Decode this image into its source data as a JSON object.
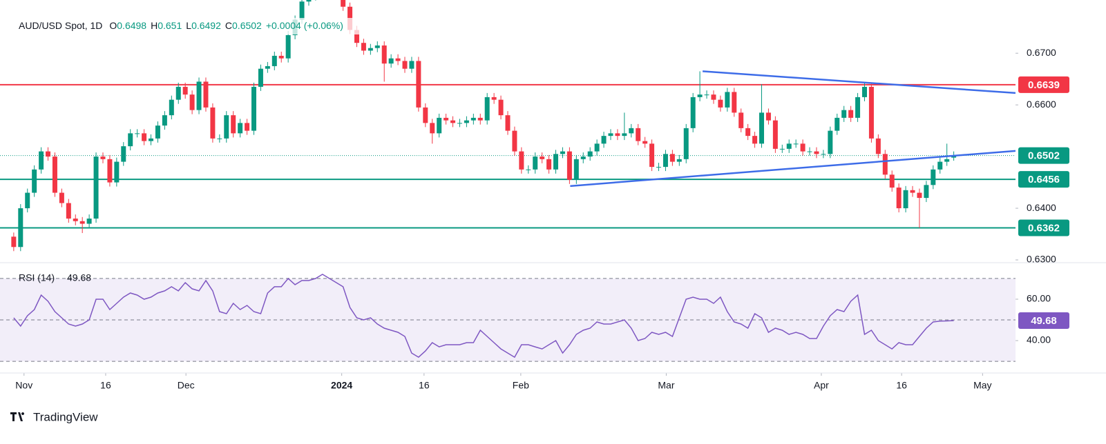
{
  "chart_data": {
    "type": "candlestick",
    "symbol": "AUD/USD Spot, 1D",
    "legend": [
      {
        "label": "O",
        "value": 0.6498
      },
      {
        "label": "H",
        "value": 0.651
      },
      {
        "label": "L",
        "value": 0.6492
      },
      {
        "label": "C",
        "value": 0.6502
      }
    ],
    "change": "+0.0004 (+0.06%)",
    "up_color": "#089981",
    "down_color": "#f23645",
    "xlim": [
      -2,
      146
    ],
    "xticks": [
      {
        "value": 1.5,
        "label": "Nov"
      },
      {
        "value": 13.4,
        "label": "16"
      },
      {
        "value": 25.1,
        "label": "Dec"
      },
      {
        "value": 47.8,
        "label": "2024",
        "bold": true
      },
      {
        "value": 59.8,
        "label": "16"
      },
      {
        "value": 73.9,
        "label": "Feb"
      },
      {
        "value": 95.1,
        "label": "Mar"
      },
      {
        "value": 117.7,
        "label": "Apr"
      },
      {
        "value": 129.4,
        "label": "16"
      },
      {
        "value": 141.2,
        "label": "May"
      }
    ],
    "ylim": [
      0.6296,
      0.6803
    ],
    "yticks": [
      {
        "value": 0.63,
        "label": "0.6300"
      },
      {
        "value": 0.64,
        "label": "0.6400"
      },
      {
        "value": 0.66,
        "label": "0.6600"
      },
      {
        "value": 0.67,
        "label": "0.6700"
      }
    ],
    "open": [
      0.6345,
      0.6325,
      0.64,
      0.643,
      0.6475,
      0.651,
      0.65,
      0.643,
      0.641,
      0.638,
      0.6375,
      0.637,
      0.638,
      0.65,
      0.6495,
      0.645,
      0.649,
      0.652,
      0.6545,
      0.6545,
      0.653,
      0.6535,
      0.656,
      0.658,
      0.661,
      0.6635,
      0.662,
      0.659,
      0.6645,
      0.6595,
      0.6535,
      0.6535,
      0.658,
      0.6545,
      0.6565,
      0.655,
      0.6635,
      0.667,
      0.6675,
      0.6695,
      0.669,
      0.6735,
      0.6765,
      0.68,
      0.681,
      0.682,
      0.683,
      0.6825,
      0.682,
      0.679,
      0.6745,
      0.672,
      0.6705,
      0.671,
      0.6715,
      0.668,
      0.669,
      0.6685,
      0.667,
      0.6685,
      0.6595,
      0.6565,
      0.6545,
      0.6575,
      0.657,
      0.6565,
      0.6565,
      0.657,
      0.6575,
      0.657,
      0.6615,
      0.661,
      0.658,
      0.655,
      0.651,
      0.6475,
      0.6475,
      0.65,
      0.6495,
      0.6475,
      0.6505,
      0.651,
      0.6455,
      0.6495,
      0.65,
      0.651,
      0.6525,
      0.654,
      0.6545,
      0.654,
      0.6545,
      0.6555,
      0.653,
      0.6525,
      0.648,
      0.648,
      0.6505,
      0.649,
      0.6495,
      0.6555,
      0.6615,
      0.662,
      0.662,
      0.661,
      0.6595,
      0.6625,
      0.6585,
      0.6555,
      0.654,
      0.6525,
      0.6585,
      0.657,
      0.6515,
      0.6515,
      0.6525,
      0.6525,
      0.651,
      0.651,
      0.6505,
      0.6505,
      0.655,
      0.6575,
      0.659,
      0.6575,
      0.6615,
      0.6635,
      0.6535,
      0.6505,
      0.6465,
      0.644,
      0.64,
      0.6435,
      0.643,
      0.642,
      0.6445,
      0.6475,
      0.649,
      0.6498
    ],
    "high": [
      0.6353,
      0.6408,
      0.6438,
      0.6483,
      0.6518,
      0.6518,
      0.6508,
      0.6438,
      0.6418,
      0.6388,
      0.6383,
      0.6388,
      0.6508,
      0.6508,
      0.6503,
      0.6498,
      0.6528,
      0.6553,
      0.6553,
      0.6553,
      0.6543,
      0.6568,
      0.6588,
      0.6618,
      0.6643,
      0.6643,
      0.6628,
      0.6653,
      0.6653,
      0.6603,
      0.6543,
      0.6588,
      0.6588,
      0.6573,
      0.6573,
      0.6643,
      0.6678,
      0.6683,
      0.6703,
      0.6703,
      0.6743,
      0.6773,
      0.6808,
      0.6818,
      0.6828,
      0.6838,
      0.6838,
      0.6833,
      0.6828,
      0.6798,
      0.6753,
      0.6728,
      0.6718,
      0.6723,
      0.6723,
      0.6698,
      0.6698,
      0.6693,
      0.6693,
      0.6693,
      0.6603,
      0.6573,
      0.6583,
      0.6583,
      0.6578,
      0.6573,
      0.6578,
      0.6583,
      0.6583,
      0.6623,
      0.6623,
      0.6618,
      0.6588,
      0.6558,
      0.6518,
      0.6483,
      0.6508,
      0.6508,
      0.6503,
      0.6513,
      0.6518,
      0.6518,
      0.6503,
      0.6508,
      0.6518,
      0.6533,
      0.6548,
      0.6553,
      0.6553,
      0.6585,
      0.6563,
      0.6563,
      0.6538,
      0.6533,
      0.6488,
      0.6513,
      0.6513,
      0.6503,
      0.6563,
      0.6623,
      0.6665,
      0.6628,
      0.6628,
      0.6618,
      0.6633,
      0.6633,
      0.6593,
      0.6563,
      0.6548,
      0.664,
      0.6593,
      0.6578,
      0.6523,
      0.6533,
      0.6533,
      0.6533,
      0.6518,
      0.6518,
      0.6513,
      0.6558,
      0.6583,
      0.6598,
      0.6598,
      0.6623,
      0.6643,
      0.6643,
      0.6543,
      0.6513,
      0.6473,
      0.6448,
      0.6443,
      0.6443,
      0.6438,
      0.6453,
      0.6483,
      0.6498,
      0.6525,
      0.651
    ],
    "low": [
      0.6317,
      0.6317,
      0.6392,
      0.6422,
      0.6467,
      0.6492,
      0.6422,
      0.6402,
      0.6372,
      0.6367,
      0.6352,
      0.6362,
      0.6372,
      0.6487,
      0.6442,
      0.6442,
      0.6482,
      0.6512,
      0.6537,
      0.6522,
      0.6522,
      0.6527,
      0.6552,
      0.6572,
      0.6602,
      0.6612,
      0.6582,
      0.6582,
      0.6587,
      0.6527,
      0.6527,
      0.6527,
      0.6537,
      0.6537,
      0.6542,
      0.6542,
      0.6627,
      0.6662,
      0.6667,
      0.6682,
      0.6682,
      0.6727,
      0.6757,
      0.6792,
      0.6802,
      0.6812,
      0.6817,
      0.6812,
      0.6782,
      0.6737,
      0.6712,
      0.6697,
      0.6697,
      0.6702,
      0.6645,
      0.6672,
      0.6677,
      0.6662,
      0.6662,
      0.6587,
      0.6557,
      0.6525,
      0.6537,
      0.6562,
      0.6557,
      0.6557,
      0.6557,
      0.6562,
      0.6562,
      0.6562,
      0.6602,
      0.6572,
      0.6542,
      0.6502,
      0.6467,
      0.6467,
      0.6467,
      0.6487,
      0.6467,
      0.6467,
      0.6497,
      0.6447,
      0.6447,
      0.6487,
      0.6492,
      0.6502,
      0.6517,
      0.6532,
      0.6532,
      0.6532,
      0.6537,
      0.6522,
      0.6517,
      0.6472,
      0.6472,
      0.6472,
      0.6482,
      0.6482,
      0.6487,
      0.6547,
      0.6607,
      0.6612,
      0.6602,
      0.6587,
      0.6587,
      0.6577,
      0.6547,
      0.6532,
      0.6517,
      0.6517,
      0.6562,
      0.6507,
      0.6507,
      0.6507,
      0.6517,
      0.6502,
      0.6502,
      0.6497,
      0.6497,
      0.6497,
      0.6542,
      0.6567,
      0.6567,
      0.6567,
      0.6607,
      0.6527,
      0.6497,
      0.6457,
      0.6432,
      0.6392,
      0.6392,
      0.6422,
      0.6362,
      0.6412,
      0.6437,
      0.6467,
      0.6482,
      0.6492
    ],
    "close": [
      0.6325,
      0.64,
      0.643,
      0.6475,
      0.651,
      0.65,
      0.643,
      0.641,
      0.638,
      0.6375,
      0.637,
      0.638,
      0.65,
      0.6495,
      0.645,
      0.649,
      0.652,
      0.6545,
      0.6545,
      0.653,
      0.6535,
      0.656,
      0.658,
      0.661,
      0.6635,
      0.662,
      0.659,
      0.6645,
      0.6595,
      0.6535,
      0.6535,
      0.658,
      0.6545,
      0.6565,
      0.655,
      0.6635,
      0.667,
      0.6675,
      0.6695,
      0.669,
      0.6735,
      0.6765,
      0.68,
      0.681,
      0.682,
      0.683,
      0.6825,
      0.682,
      0.679,
      0.6745,
      0.672,
      0.6705,
      0.671,
      0.6715,
      0.668,
      0.669,
      0.6685,
      0.667,
      0.6685,
      0.6595,
      0.6565,
      0.6545,
      0.6575,
      0.657,
      0.6565,
      0.6565,
      0.657,
      0.6575,
      0.657,
      0.6615,
      0.661,
      0.658,
      0.655,
      0.651,
      0.6475,
      0.6475,
      0.65,
      0.6495,
      0.6475,
      0.6505,
      0.651,
      0.6455,
      0.6495,
      0.65,
      0.651,
      0.6525,
      0.654,
      0.6545,
      0.654,
      0.6545,
      0.6555,
      0.653,
      0.6525,
      0.648,
      0.648,
      0.6505,
      0.649,
      0.6495,
      0.6555,
      0.6615,
      0.662,
      0.662,
      0.661,
      0.6595,
      0.6625,
      0.6585,
      0.6555,
      0.654,
      0.6525,
      0.6585,
      0.657,
      0.6515,
      0.6515,
      0.6525,
      0.6525,
      0.651,
      0.651,
      0.6505,
      0.6505,
      0.655,
      0.6575,
      0.659,
      0.6575,
      0.6615,
      0.6635,
      0.6535,
      0.6505,
      0.6465,
      0.644,
      0.64,
      0.6435,
      0.643,
      0.642,
      0.6445,
      0.6475,
      0.649,
      0.6495,
      0.6502
    ],
    "last_color": "#089981",
    "levels": [
      {
        "value": 0.6639,
        "color": "#f23645"
      },
      {
        "value": 0.6456,
        "color": "#089981"
      },
      {
        "value": 0.6362,
        "color": "#089981"
      }
    ],
    "trendlines": [
      {
        "color": "#3d6ce8",
        "x": [
          100.4,
          146
        ],
        "y": [
          0.6665,
          0.6623
        ]
      },
      {
        "color": "#3d6ce8",
        "x": [
          81.1,
          146
        ],
        "y": [
          0.6443,
          0.6511
        ]
      }
    ],
    "rsi": {
      "title": "RSI (14)",
      "color": "#7e57c2",
      "ylim": [
        24.7,
        76.3
      ],
      "yticks": [
        {
          "value": 40,
          "label": "40.00"
        },
        {
          "value": 60,
          "label": "60.00"
        }
      ],
      "levels": [
        70,
        50,
        30
      ],
      "values": [
        51,
        47,
        52,
        55,
        62,
        59,
        54,
        51,
        48,
        47,
        48,
        50,
        60,
        60,
        55,
        58,
        61,
        63,
        62,
        60,
        61,
        63,
        64,
        66,
        64,
        68,
        65,
        64,
        69,
        64,
        54,
        53,
        58,
        55,
        57,
        54,
        53,
        63,
        66,
        66,
        70,
        67,
        69,
        69,
        70,
        72,
        70,
        68,
        66,
        56,
        51,
        50,
        51,
        48,
        46,
        45,
        44,
        42,
        34,
        32,
        35,
        39,
        37,
        38,
        38,
        38,
        39,
        39,
        45,
        42,
        39,
        36,
        34,
        32,
        38,
        38,
        37,
        36,
        38,
        40,
        34,
        38,
        43,
        45,
        46,
        49,
        48,
        48,
        49,
        50,
        46,
        40,
        41,
        44,
        43,
        44,
        42,
        51,
        60,
        61,
        60,
        60,
        58,
        61,
        54,
        49,
        48,
        46,
        53,
        51,
        44,
        46,
        45,
        43,
        44,
        43,
        41,
        41,
        47,
        52,
        55,
        54,
        59,
        62,
        43,
        45,
        40,
        38,
        36,
        39,
        38,
        38,
        42,
        46,
        49,
        49.4,
        49.5,
        49.68
      ]
    }
  },
  "brand": "TradingView"
}
